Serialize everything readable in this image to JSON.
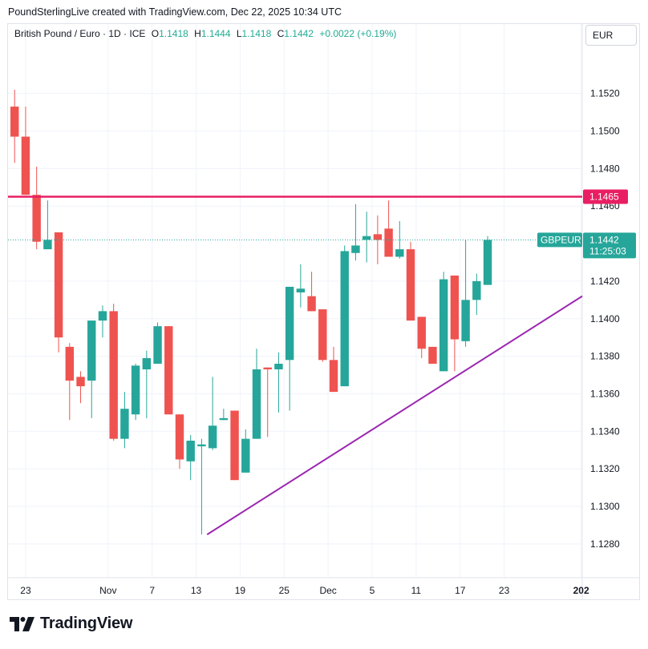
{
  "header": {
    "credit": "PoundSterlingLive created with TradingView.com, Dec 22, 2025 10:34 UTC"
  },
  "legend": {
    "symbol": "British Pound / Euro · 1D · ICE",
    "o_label": "O",
    "o_value": "1.1418",
    "h_label": "H",
    "h_value": "1.1444",
    "l_label": "L",
    "l_value": "1.1418",
    "c_label": "C",
    "c_value": "1.1442",
    "change": "+0.0022 (+0.19%)"
  },
  "currency": "EUR",
  "brand": {
    "name": "TradingView"
  },
  "colors": {
    "up": "#26a69a",
    "down": "#ef5350",
    "resistance": "#e91e63",
    "trendline": "#9c27b0",
    "last_price": "#26a69a"
  },
  "chart_data": {
    "type": "candlestick",
    "symbol": "GBPEUR",
    "interval": "1D",
    "ylim": [
      1.1262,
      1.1557
    ],
    "y_ticks": [
      "1.1520",
      "1.1500",
      "1.1480",
      "1.1460",
      "1.1420",
      "1.1400",
      "1.1380",
      "1.1360",
      "1.1340",
      "1.1320",
      "1.1300",
      "1.1280"
    ],
    "x_ticks": [
      {
        "label": "23",
        "index": 1
      },
      {
        "label": "Nov",
        "index": 8.5
      },
      {
        "label": "7",
        "index": 12.5
      },
      {
        "label": "13",
        "index": 16.5
      },
      {
        "label": "19",
        "index": 20.5
      },
      {
        "label": "25",
        "index": 24.5
      },
      {
        "label": "Dec",
        "index": 28.5
      },
      {
        "label": "5",
        "index": 32.5
      },
      {
        "label": "11",
        "index": 36.5
      },
      {
        "label": "17",
        "index": 40.5
      },
      {
        "label": "23",
        "index": 44.5
      },
      {
        "label": "202",
        "index": 51.5
      }
    ],
    "x_range": [
      -0.6,
      51.6
    ],
    "candles": [
      {
        "o": 1.1513,
        "h": 1.1522,
        "l": 1.1483,
        "c": 1.1497
      },
      {
        "o": 1.1497,
        "h": 1.1513,
        "l": 1.1466,
        "c": 1.1466
      },
      {
        "o": 1.1466,
        "h": 1.1481,
        "l": 1.1437,
        "c": 1.1441
      },
      {
        "o": 1.1437,
        "h": 1.1463,
        "l": 1.1437,
        "c": 1.1442
      },
      {
        "o": 1.1446,
        "h": 1.1446,
        "l": 1.1382,
        "c": 1.139
      },
      {
        "o": 1.1385,
        "h": 1.1387,
        "l": 1.1346,
        "c": 1.1367
      },
      {
        "o": 1.1369,
        "h": 1.1372,
        "l": 1.1355,
        "c": 1.1364
      },
      {
        "o": 1.1367,
        "h": 1.1399,
        "l": 1.1347,
        "c": 1.1399
      },
      {
        "o": 1.1399,
        "h": 1.1407,
        "l": 1.139,
        "c": 1.1404
      },
      {
        "o": 1.1404,
        "h": 1.1408,
        "l": 1.1335,
        "c": 1.1336
      },
      {
        "o": 1.1336,
        "h": 1.1361,
        "l": 1.1331,
        "c": 1.1352
      },
      {
        "o": 1.1349,
        "h": 1.1376,
        "l": 1.1346,
        "c": 1.1375
      },
      {
        "o": 1.1373,
        "h": 1.1383,
        "l": 1.1347,
        "c": 1.1379
      },
      {
        "o": 1.1376,
        "h": 1.1398,
        "l": 1.1376,
        "c": 1.1396
      },
      {
        "o": 1.1396,
        "h": 1.1396,
        "l": 1.1349,
        "c": 1.1349
      },
      {
        "o": 1.1349,
        "h": 1.1349,
        "l": 1.132,
        "c": 1.1325
      },
      {
        "o": 1.1324,
        "h": 1.1338,
        "l": 1.1314,
        "c": 1.1335
      },
      {
        "o": 1.1332,
        "h": 1.1336,
        "l": 1.1285,
        "c": 1.1333
      },
      {
        "o": 1.1331,
        "h": 1.1369,
        "l": 1.133,
        "c": 1.1343
      },
      {
        "o": 1.1346,
        "h": 1.1352,
        "l": 1.1346,
        "c": 1.1347
      },
      {
        "o": 1.1351,
        "h": 1.1351,
        "l": 1.1314,
        "c": 1.1314
      },
      {
        "o": 1.1318,
        "h": 1.1341,
        "l": 1.1318,
        "c": 1.1336
      },
      {
        "o": 1.1336,
        "h": 1.1384,
        "l": 1.1336,
        "c": 1.1373
      },
      {
        "o": 1.1374,
        "h": 1.1374,
        "l": 1.1337,
        "c": 1.1373
      },
      {
        "o": 1.1373,
        "h": 1.1382,
        "l": 1.135,
        "c": 1.1376
      },
      {
        "o": 1.1378,
        "h": 1.1416,
        "l": 1.1351,
        "c": 1.1417
      },
      {
        "o": 1.1414,
        "h": 1.1429,
        "l": 1.1406,
        "c": 1.1416
      },
      {
        "o": 1.1412,
        "h": 1.1425,
        "l": 1.1404,
        "c": 1.1404
      },
      {
        "o": 1.1405,
        "h": 1.1405,
        "l": 1.1377,
        "c": 1.1378
      },
      {
        "o": 1.1378,
        "h": 1.1385,
        "l": 1.1361,
        "c": 1.1361
      },
      {
        "o": 1.1364,
        "h": 1.1439,
        "l": 1.1364,
        "c": 1.1436
      },
      {
        "o": 1.1435,
        "h": 1.1461,
        "l": 1.1431,
        "c": 1.1439
      },
      {
        "o": 1.1442,
        "h": 1.1457,
        "l": 1.143,
        "c": 1.1444
      },
      {
        "o": 1.1445,
        "h": 1.1455,
        "l": 1.1429,
        "c": 1.1442
      },
      {
        "o": 1.1448,
        "h": 1.1463,
        "l": 1.1433,
        "c": 1.1433
      },
      {
        "o": 1.1433,
        "h": 1.1452,
        "l": 1.1432,
        "c": 1.1437
      },
      {
        "o": 1.1437,
        "h": 1.1441,
        "l": 1.1399,
        "c": 1.1399
      },
      {
        "o": 1.1401,
        "h": 1.1401,
        "l": 1.1379,
        "c": 1.1384
      },
      {
        "o": 1.1385,
        "h": 1.1385,
        "l": 1.1376,
        "c": 1.1376
      },
      {
        "o": 1.1372,
        "h": 1.1425,
        "l": 1.1372,
        "c": 1.1421
      },
      {
        "o": 1.1423,
        "h": 1.1423,
        "l": 1.1372,
        "c": 1.1389
      },
      {
        "o": 1.1388,
        "h": 1.1442,
        "l": 1.1385,
        "c": 1.141
      },
      {
        "o": 1.141,
        "h": 1.1424,
        "l": 1.1402,
        "c": 1.142
      },
      {
        "o": 1.1418,
        "h": 1.1444,
        "l": 1.1418,
        "c": 1.1442
      }
    ],
    "resistance": {
      "price": 1.1465,
      "label": "1.1465"
    },
    "trendline": {
      "from": {
        "index": 17.5,
        "price": 1.1285
      },
      "to": {
        "index": 51.6,
        "price": 1.1412
      }
    },
    "last_price": {
      "label_symbol": "GBPEUR",
      "label_price": "1.1442",
      "countdown": "11:25:03",
      "price": 1.1442
    }
  }
}
